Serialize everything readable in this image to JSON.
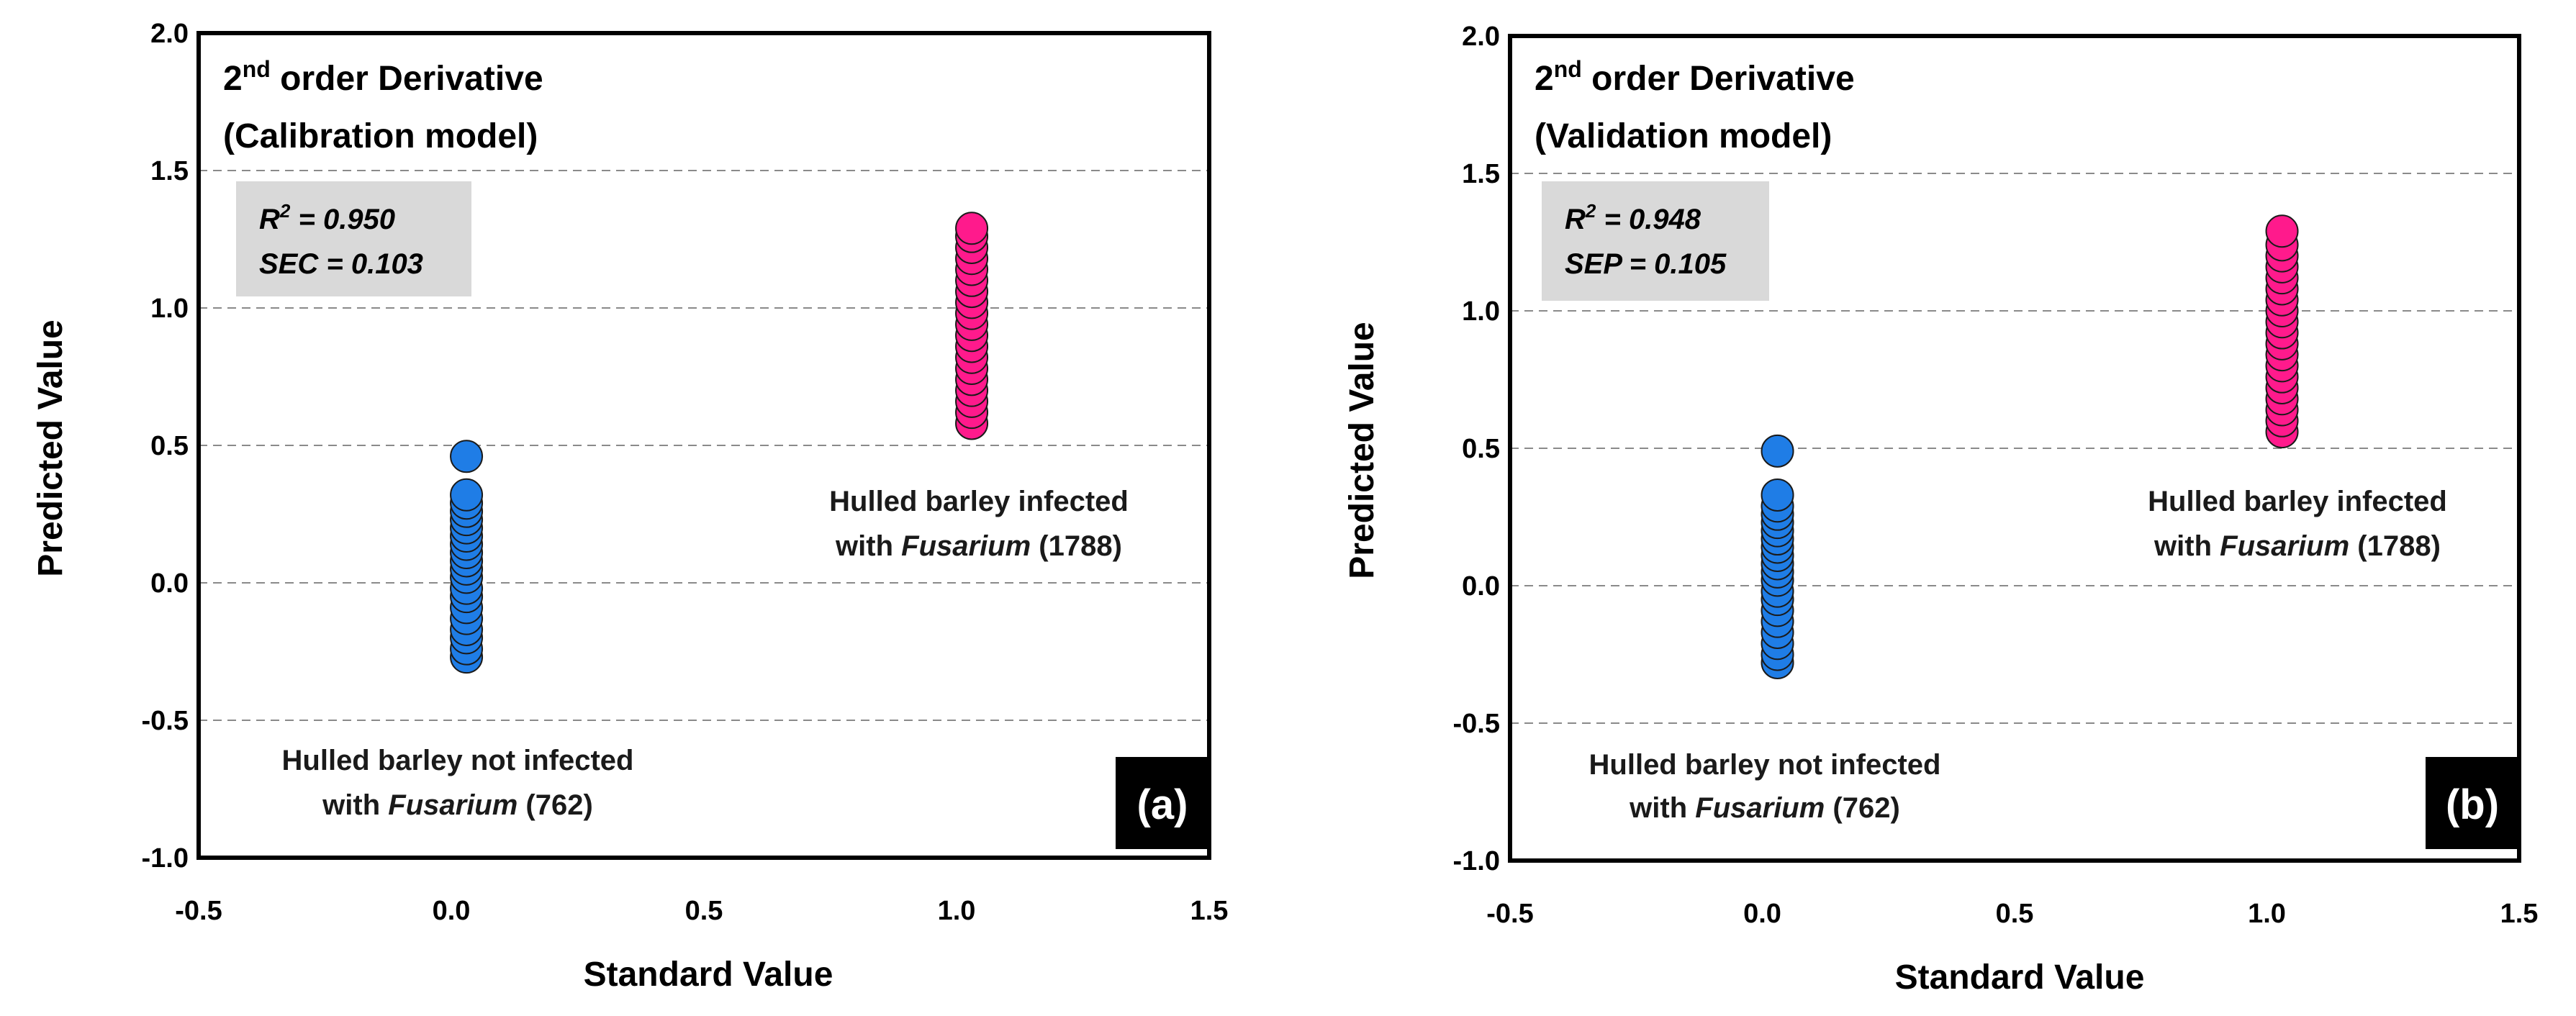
{
  "chart_data": [
    {
      "type": "scatter",
      "title_line1_base": "2",
      "title_line1_sup": "nd",
      "title_line1_rest": " order Derivative",
      "title_line2": "(Calibration model)",
      "xlabel": "Standard Value",
      "ylabel": "Predicted Value",
      "xlim": [
        -0.5,
        1.5
      ],
      "ylim": [
        -1.0,
        2.0
      ],
      "xticks": [
        "-0.5",
        "0.0",
        "0.5",
        "1.0",
        "1.5"
      ],
      "yticks": [
        "2.0",
        "1.5",
        "1.0",
        "0.5",
        "0.0",
        "-0.5",
        "-1.0"
      ],
      "grid": "horizontal dashed",
      "stats": {
        "r2_label": "R",
        "r2_sup": "2",
        "r2_text": " =  0.950",
        "err_text": "SEC = 0.103"
      },
      "panel_label": "(a)",
      "annotations": {
        "infected_line1": "Hulled barley infected",
        "infected_line2_pre": "with ",
        "infected_line2_italic": "Fusarium",
        "infected_line2_post": " (1788)",
        "not_infected_line1": "Hulled barley not infected",
        "not_infected_line2_pre": "with ",
        "not_infected_line2_italic": "Fusarium",
        "not_infected_line2_post": " (762)"
      },
      "series": [
        {
          "name": "Hulled barley not infected with Fusarium",
          "color": "#1f7de6",
          "x": 0.03,
          "y": [
            -0.27,
            -0.24,
            -0.2,
            -0.17,
            -0.13,
            -0.09,
            -0.05,
            -0.02,
            0.02,
            0.05,
            0.08,
            0.11,
            0.14,
            0.17,
            0.2,
            0.23,
            0.26,
            0.29,
            0.32,
            0.46
          ]
        },
        {
          "name": "Hulled barley infected with Fusarium",
          "color": "#ff1a8c",
          "x": 1.03,
          "y": [
            0.58,
            0.62,
            0.66,
            0.7,
            0.74,
            0.78,
            0.82,
            0.86,
            0.9,
            0.94,
            0.98,
            1.02,
            1.06,
            1.1,
            1.14,
            1.18,
            1.22,
            1.26,
            1.29
          ]
        }
      ]
    },
    {
      "type": "scatter",
      "title_line1_base": "2",
      "title_line1_sup": "nd",
      "title_line1_rest": " order Derivative",
      "title_line2": "(Validation model)",
      "xlabel": "Standard Value",
      "ylabel": "Predicted Value",
      "xlim": [
        -0.5,
        1.5
      ],
      "ylim": [
        -1.0,
        2.0
      ],
      "xticks": [
        "-0.5",
        "0.0",
        "0.5",
        "1.0",
        "1.5"
      ],
      "yticks": [
        "2.0",
        "1.5",
        "1.0",
        "0.5",
        "0.0",
        "-0.5",
        "-1.0"
      ],
      "grid": "horizontal dashed",
      "stats": {
        "r2_label": "R",
        "r2_sup": "2",
        "r2_text": " =  0.948",
        "err_text": "SEP = 0.105"
      },
      "panel_label": "(b)",
      "annotations": {
        "infected_line1": "Hulled barley infected",
        "infected_line2_pre": "with ",
        "infected_line2_italic": "Fusarium",
        "infected_line2_post": " (1788)",
        "not_infected_line1": "Hulled barley not infected",
        "not_infected_line2_pre": "with ",
        "not_infected_line2_italic": "Fusarium",
        "not_infected_line2_post": " (762)"
      },
      "series": [
        {
          "name": "Hulled barley not infected with Fusarium",
          "color": "#1f7de6",
          "x": 0.03,
          "y": [
            -0.28,
            -0.25,
            -0.21,
            -0.17,
            -0.13,
            -0.09,
            -0.05,
            -0.02,
            0.02,
            0.05,
            0.08,
            0.11,
            0.14,
            0.17,
            0.2,
            0.23,
            0.26,
            0.29,
            0.33,
            0.49
          ]
        },
        {
          "name": "Hulled barley infected with Fusarium",
          "color": "#ff1a8c",
          "x": 1.03,
          "y": [
            0.56,
            0.6,
            0.64,
            0.68,
            0.72,
            0.76,
            0.8,
            0.84,
            0.88,
            0.92,
            0.96,
            1.0,
            1.04,
            1.08,
            1.12,
            1.16,
            1.2,
            1.24,
            1.29
          ]
        }
      ]
    }
  ]
}
